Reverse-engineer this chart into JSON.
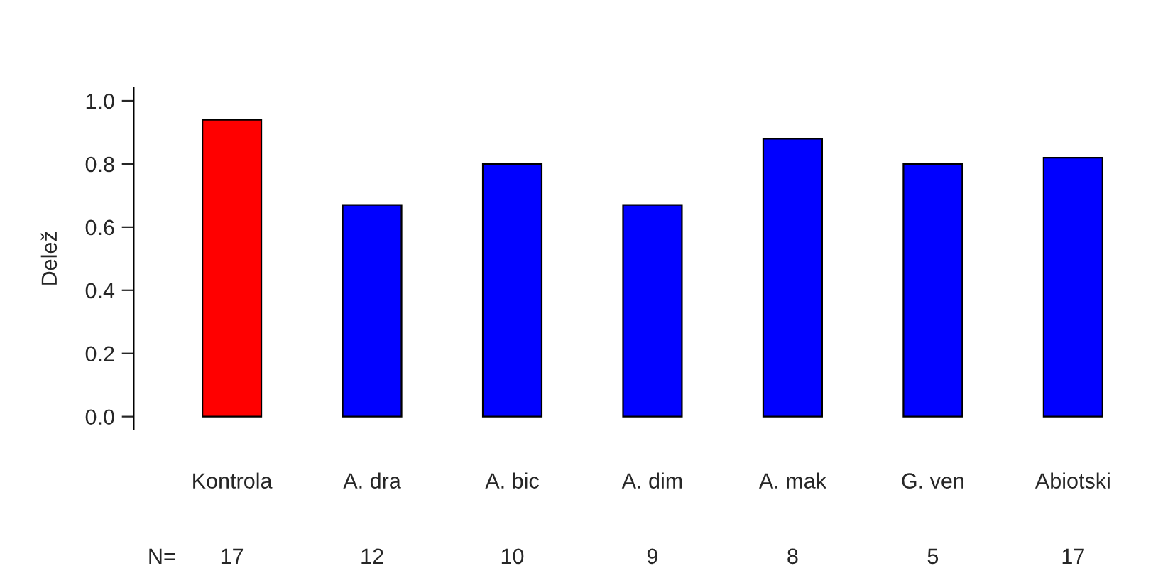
{
  "chart_data": {
    "type": "bar",
    "ylabel": "Delež",
    "categories": [
      "Kontrola",
      "A. dra",
      "A. bic",
      "A. dim",
      "A. mak",
      "G. ven",
      "Abiotski"
    ],
    "values": [
      0.94,
      0.67,
      0.8,
      0.67,
      0.88,
      0.8,
      0.82
    ],
    "colors": [
      "#ff0000",
      "#0000ff",
      "#0000ff",
      "#0000ff",
      "#0000ff",
      "#0000ff",
      "#0000ff"
    ],
    "ylim": [
      -0.04,
      1.04
    ],
    "yticks": [
      {
        "value": 0,
        "label": "0.0"
      },
      {
        "value": 0.2,
        "label": "0.2"
      },
      {
        "value": 0.4,
        "label": "0.4"
      },
      {
        "value": 0.6,
        "label": "0.6"
      },
      {
        "value": 0.8,
        "label": "0.8"
      },
      {
        "value": 1.0,
        "label": "1.0"
      }
    ],
    "grid": false,
    "legend": false,
    "annotations": [
      "N=",
      "17",
      "12",
      "10",
      "9",
      "8",
      "5",
      "17"
    ]
  }
}
